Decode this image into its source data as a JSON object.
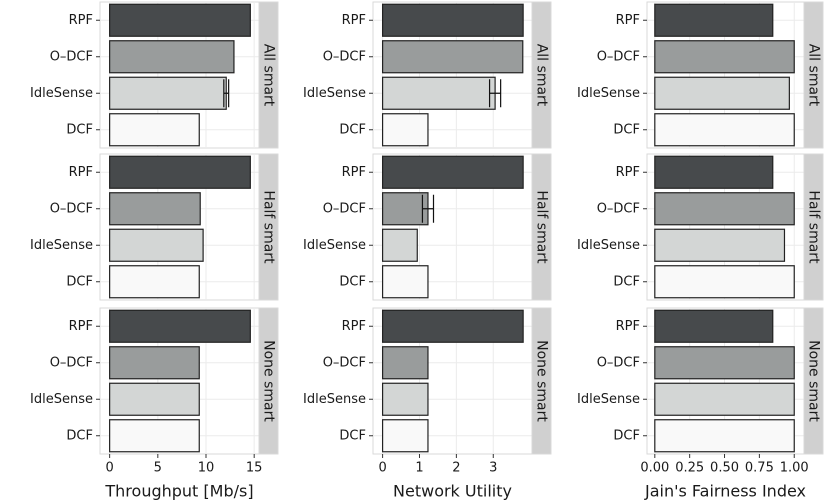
{
  "chart_data": [
    {
      "type": "bar",
      "orientation": "horizontal",
      "xlabel": "Throughput [Mb/s]",
      "xlim": [
        -1,
        15.5
      ],
      "xticks": [
        0,
        5,
        10,
        15
      ],
      "categories": [
        "RPF",
        "O–DCF",
        "IdleSense",
        "DCF"
      ],
      "colors": [
        "#474a4c",
        "#999c9c",
        "#d3d6d5",
        "#f9f9f9"
      ],
      "facets": [
        {
          "name": "All smart",
          "values": [
            14.6,
            12.9,
            12.1,
            9.3
          ],
          "errors": [
            null,
            null,
            0.25,
            null
          ]
        },
        {
          "name": "Half smart",
          "values": [
            14.6,
            9.4,
            9.7,
            9.3
          ],
          "errors": [
            null,
            null,
            null,
            null
          ]
        },
        {
          "name": "None smart",
          "values": [
            14.6,
            9.3,
            9.3,
            9.3
          ],
          "errors": [
            null,
            null,
            null,
            null
          ]
        }
      ]
    },
    {
      "type": "bar",
      "orientation": "horizontal",
      "xlabel": "Network Utility",
      "xlim": [
        -0.26,
        4.05
      ],
      "xticks": [
        0,
        1,
        2,
        3
      ],
      "categories": [
        "RPF",
        "O–DCF",
        "IdleSense",
        "DCF"
      ],
      "colors": [
        "#474a4c",
        "#999c9c",
        "#d3d6d5",
        "#f9f9f9"
      ],
      "facets": [
        {
          "name": "All smart",
          "values": [
            3.81,
            3.8,
            3.05,
            1.23
          ],
          "errors": [
            null,
            null,
            0.15,
            null
          ]
        },
        {
          "name": "Half smart",
          "values": [
            3.81,
            1.23,
            0.94,
            1.23
          ],
          "errors": [
            null,
            0.15,
            null,
            null
          ]
        },
        {
          "name": "None smart",
          "values": [
            3.81,
            1.23,
            1.23,
            1.23
          ],
          "errors": [
            null,
            null,
            null,
            null
          ]
        }
      ]
    },
    {
      "type": "bar",
      "orientation": "horizontal",
      "xlabel": "Jain's Fairness Index",
      "xlim": [
        -0.056,
        1.07
      ],
      "xticks": [
        {
          "value": 0,
          "label": "0.00"
        },
        {
          "value": 0.25,
          "label": "0.25"
        },
        {
          "value": 0.5,
          "label": "0.50"
        },
        {
          "value": 0.75,
          "label": "0.75"
        },
        {
          "value": 1,
          "label": "1.00"
        }
      ],
      "categories": [
        "RPF",
        "O–DCF",
        "IdleSense",
        "DCF"
      ],
      "colors": [
        "#474a4c",
        "#999c9c",
        "#d3d6d5",
        "#f9f9f9"
      ],
      "facets": [
        {
          "name": "All smart",
          "values": [
            0.846,
            1.0,
            0.965,
            1.0
          ],
          "errors": [
            null,
            null,
            null,
            null
          ]
        },
        {
          "name": "Half smart",
          "values": [
            0.846,
            1.0,
            0.93,
            1.0
          ],
          "errors": [
            null,
            null,
            null,
            null
          ]
        },
        {
          "name": "None smart",
          "values": [
            0.846,
            1.0,
            1.0,
            1.0
          ],
          "errors": [
            null,
            null,
            null,
            null
          ]
        }
      ]
    }
  ]
}
